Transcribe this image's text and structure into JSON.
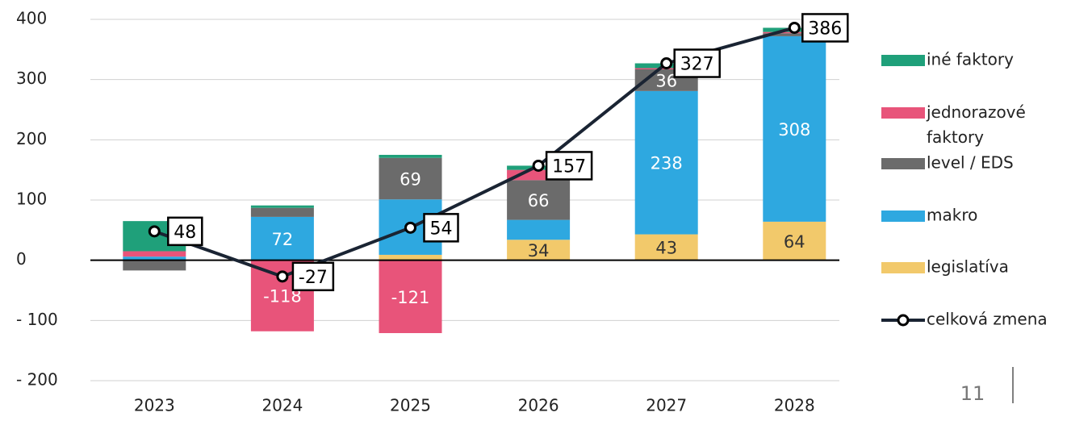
{
  "chart_data": {
    "type": "bar",
    "categories": [
      "2023",
      "2024",
      "2025",
      "2026",
      "2027",
      "2028"
    ],
    "series": [
      {
        "name": "legislatíva",
        "color": "#f2c96b",
        "values": [
          0,
          0,
          9,
          34,
          43,
          64
        ],
        "value_labels": [
          null,
          null,
          null,
          "34",
          "43",
          "64"
        ]
      },
      {
        "name": "makro",
        "color": "#2ea8e0",
        "values": [
          6,
          72,
          92,
          33,
          238,
          308
        ],
        "value_labels": [
          null,
          "72",
          null,
          null,
          "238",
          "308"
        ]
      },
      {
        "name": "level / EDS",
        "color": "#6b6b6b",
        "values": [
          -17,
          15,
          69,
          66,
          36,
          5
        ],
        "value_labels": [
          null,
          null,
          "69",
          "66",
          "36",
          null
        ]
      },
      {
        "name": "jednorazové faktory",
        "color": "#e8547a",
        "values": [
          9,
          -118,
          -121,
          17,
          2,
          2
        ],
        "value_labels": [
          null,
          "-118",
          "-121",
          null,
          null,
          null
        ]
      },
      {
        "name": "iné faktory",
        "color": "#1fa07a",
        "values": [
          50,
          4,
          5,
          7,
          8,
          7
        ],
        "value_labels": [
          null,
          null,
          null,
          null,
          null,
          null
        ]
      },
      {
        "name": "celková zmena",
        "type": "line",
        "color": "#1a2433",
        "values": [
          48,
          -27,
          54,
          157,
          327,
          386
        ]
      }
    ],
    "ylim": [
      -200,
      400
    ],
    "yticks": [
      {
        "value": -200,
        "label": "- 200"
      },
      {
        "value": -100,
        "label": "- 100"
      },
      0,
      100,
      200,
      300,
      400
    ],
    "grid": true,
    "legend": "right",
    "page_number": "11"
  }
}
